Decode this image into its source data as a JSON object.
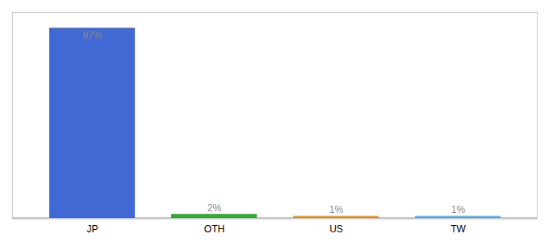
{
  "chart_data": {
    "type": "bar",
    "categories": [
      "JP",
      "OTH",
      "US",
      "TW"
    ],
    "values": [
      97,
      2,
      1,
      1
    ],
    "value_labels": [
      "97%",
      "2%",
      "1%",
      "1%"
    ],
    "colors": [
      "#4169d4",
      "#33aa33",
      "#f0a030",
      "#66bbee"
    ],
    "ylim": [
      0,
      105
    ],
    "data_labels": true,
    "tick_labels": "x",
    "grid": false
  }
}
